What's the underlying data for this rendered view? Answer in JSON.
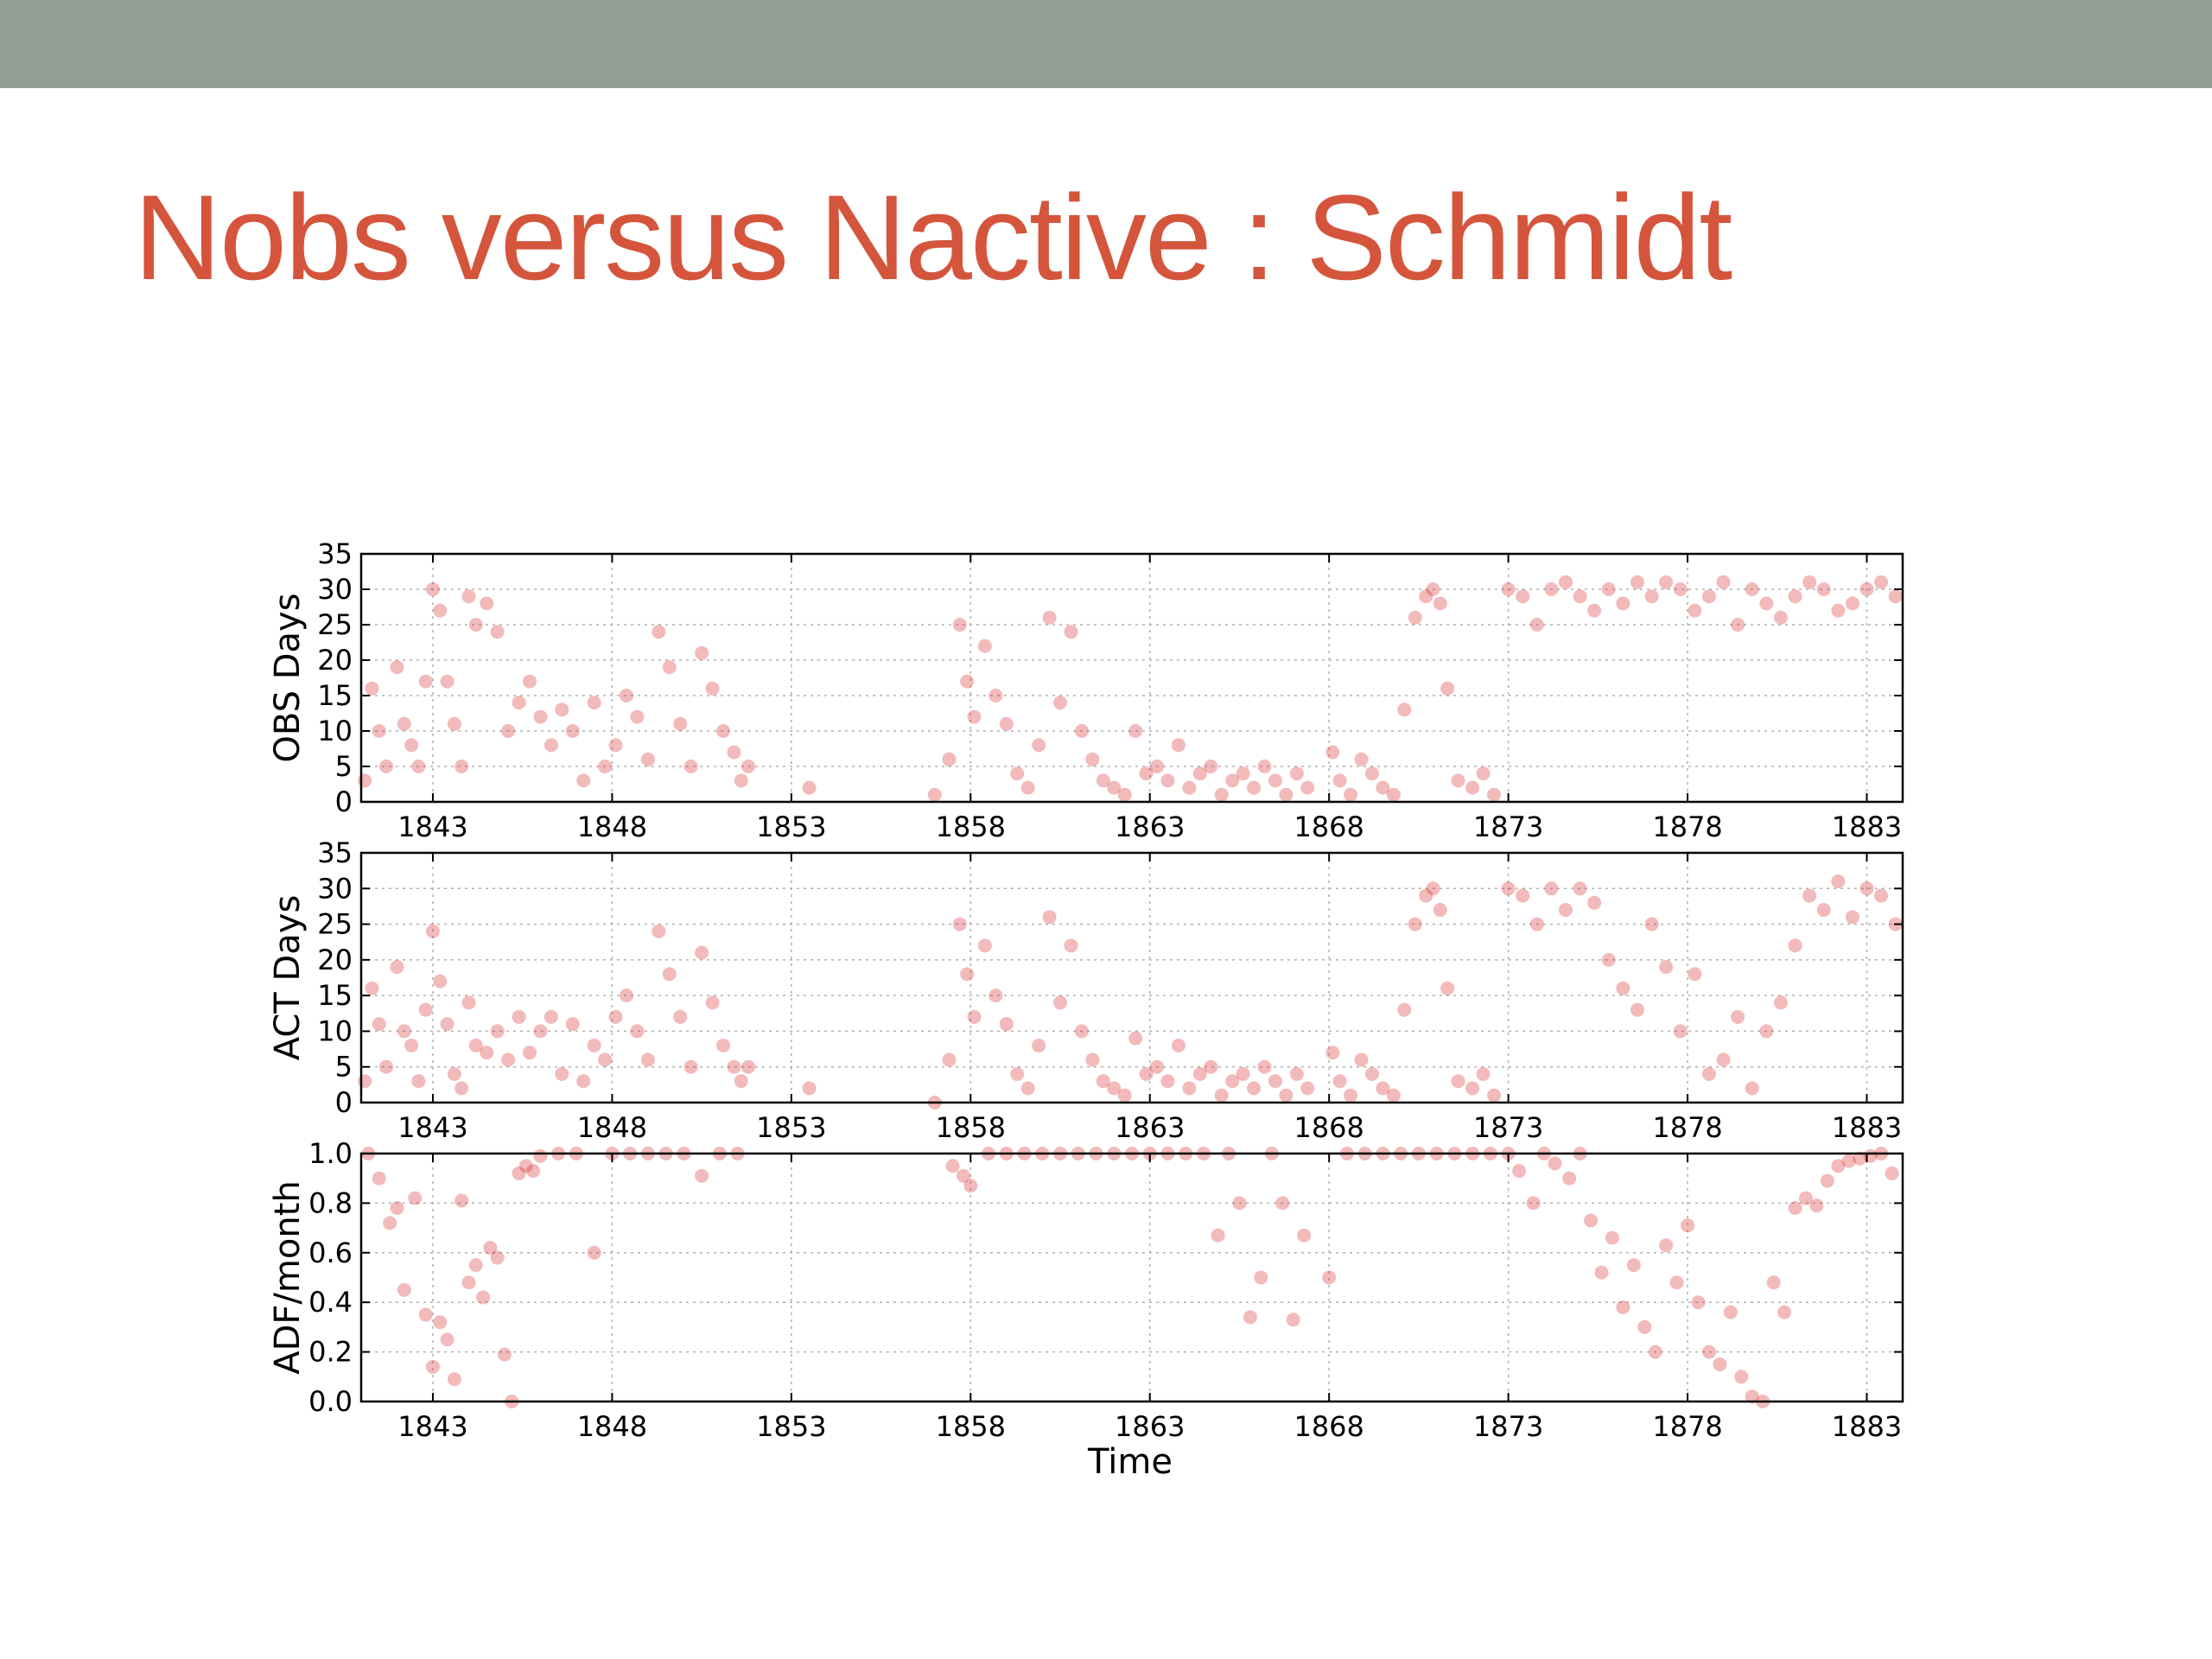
{
  "slide": {
    "title": "Nobs versus Nactive : Schmidt",
    "title_color": "#d4553c",
    "header_bar_color": "#919e96"
  },
  "chart_data": [
    {
      "type": "scatter",
      "name": "obs",
      "ylabel": "OBS Days",
      "xlabel": "",
      "xlim": [
        1841,
        1884
      ],
      "ylim": [
        0,
        35
      ],
      "xticks": [
        1843,
        1848,
        1853,
        1858,
        1863,
        1868,
        1873,
        1878,
        1883
      ],
      "xtick_labels": [
        "1843",
        "1848",
        "1853",
        "1858",
        "1863",
        "1868",
        "1873",
        "1878",
        "1883"
      ],
      "yticks": [
        0,
        5,
        10,
        15,
        20,
        25,
        30,
        35
      ],
      "ytick_labels": [
        "0",
        "5",
        "10",
        "15",
        "20",
        "25",
        "30",
        "35"
      ],
      "grid": true,
      "marker_color": "#d62728",
      "x": [
        1841.1,
        1841.3,
        1841.5,
        1841.7,
        1842.0,
        1842.2,
        1842.4,
        1842.6,
        1842.8,
        1843.0,
        1843.2,
        1843.4,
        1843.6,
        1843.8,
        1844.0,
        1844.2,
        1844.5,
        1844.8,
        1845.1,
        1845.4,
        1845.7,
        1846.0,
        1846.3,
        1846.6,
        1846.9,
        1847.2,
        1847.5,
        1847.8,
        1848.1,
        1848.4,
        1848.7,
        1849.0,
        1849.3,
        1849.6,
        1849.9,
        1850.2,
        1850.5,
        1850.8,
        1851.1,
        1851.4,
        1851.6,
        1851.8,
        1853.5,
        1857.0,
        1857.4,
        1857.7,
        1857.9,
        1858.1,
        1858.4,
        1858.7,
        1859.0,
        1859.3,
        1859.6,
        1859.9,
        1860.2,
        1860.5,
        1860.8,
        1861.1,
        1861.4,
        1861.7,
        1862.0,
        1862.3,
        1862.6,
        1862.9,
        1863.2,
        1863.5,
        1863.8,
        1864.1,
        1864.4,
        1864.7,
        1865.0,
        1865.3,
        1865.6,
        1865.9,
        1866.2,
        1866.5,
        1866.8,
        1867.1,
        1867.4,
        1868.1,
        1868.3,
        1868.6,
        1868.9,
        1869.2,
        1869.5,
        1869.8,
        1870.1,
        1870.4,
        1870.7,
        1870.9,
        1871.1,
        1871.3,
        1871.6,
        1872.0,
        1872.3,
        1872.6,
        1873.0,
        1873.4,
        1873.8,
        1874.2,
        1874.6,
        1875.0,
        1875.4,
        1875.8,
        1876.2,
        1876.6,
        1877.0,
        1877.4,
        1877.8,
        1878.2,
        1878.6,
        1879.0,
        1879.4,
        1879.8,
        1880.2,
        1880.6,
        1881.0,
        1881.4,
        1881.8,
        1882.2,
        1882.6,
        1883.0,
        1883.4,
        1883.8
      ],
      "y": [
        3,
        16,
        10,
        5,
        19,
        11,
        8,
        5,
        17,
        30,
        27,
        17,
        11,
        5,
        29,
        25,
        28,
        24,
        10,
        14,
        17,
        12,
        8,
        13,
        10,
        3,
        14,
        5,
        8,
        15,
        12,
        6,
        24,
        19,
        11,
        5,
        21,
        16,
        10,
        7,
        3,
        5,
        2,
        1,
        6,
        25,
        17,
        12,
        22,
        15,
        11,
        4,
        2,
        8,
        26,
        14,
        24,
        10,
        6,
        3,
        2,
        1,
        10,
        4,
        5,
        3,
        8,
        2,
        4,
        5,
        1,
        3,
        4,
        2,
        5,
        3,
        1,
        4,
        2,
        7,
        3,
        1,
        6,
        4,
        2,
        1,
        13,
        26,
        29,
        30,
        28,
        16,
        3,
        2,
        4,
        1,
        30,
        29,
        25,
        30,
        31,
        29,
        27,
        30,
        28,
        31,
        29,
        31,
        30,
        27,
        29,
        31,
        25,
        30,
        28,
        26,
        29,
        31,
        30,
        27,
        28,
        30,
        31,
        29
      ]
    },
    {
      "type": "scatter",
      "name": "act",
      "ylabel": "ACT Days",
      "xlabel": "",
      "xlim": [
        1841,
        1884
      ],
      "ylim": [
        0,
        35
      ],
      "xticks": [
        1843,
        1848,
        1853,
        1858,
        1863,
        1868,
        1873,
        1878,
        1883
      ],
      "xtick_labels": [
        "1843",
        "1848",
        "1853",
        "1858",
        "1863",
        "1868",
        "1873",
        "1878",
        "1883"
      ],
      "yticks": [
        0,
        5,
        10,
        15,
        20,
        25,
        30,
        35
      ],
      "ytick_labels": [
        "0",
        "5",
        "10",
        "15",
        "20",
        "25",
        "30",
        "35"
      ],
      "grid": true,
      "marker_color": "#d62728",
      "x": [
        1841.1,
        1841.3,
        1841.5,
        1841.7,
        1842.0,
        1842.2,
        1842.4,
        1842.6,
        1842.8,
        1843.0,
        1843.2,
        1843.4,
        1843.6,
        1843.8,
        1844.0,
        1844.2,
        1844.5,
        1844.8,
        1845.1,
        1845.4,
        1845.7,
        1846.0,
        1846.3,
        1846.6,
        1846.9,
        1847.2,
        1847.5,
        1847.8,
        1848.1,
        1848.4,
        1848.7,
        1849.0,
        1849.3,
        1849.6,
        1849.9,
        1850.2,
        1850.5,
        1850.8,
        1851.1,
        1851.4,
        1851.6,
        1851.8,
        1853.5,
        1857.0,
        1857.4,
        1857.7,
        1857.9,
        1858.1,
        1858.4,
        1858.7,
        1859.0,
        1859.3,
        1859.6,
        1859.9,
        1860.2,
        1860.5,
        1860.8,
        1861.1,
        1861.4,
        1861.7,
        1862.0,
        1862.3,
        1862.6,
        1862.9,
        1863.2,
        1863.5,
        1863.8,
        1864.1,
        1864.4,
        1864.7,
        1865.0,
        1865.3,
        1865.6,
        1865.9,
        1866.2,
        1866.5,
        1866.8,
        1867.1,
        1867.4,
        1868.1,
        1868.3,
        1868.6,
        1868.9,
        1869.2,
        1869.5,
        1869.8,
        1870.1,
        1870.4,
        1870.7,
        1870.9,
        1871.1,
        1871.3,
        1871.6,
        1872.0,
        1872.3,
        1872.6,
        1873.0,
        1873.4,
        1873.8,
        1874.2,
        1874.6,
        1875.0,
        1875.4,
        1875.8,
        1876.2,
        1876.6,
        1877.0,
        1877.4,
        1877.8,
        1878.2,
        1878.6,
        1879.0,
        1879.4,
        1879.8,
        1880.2,
        1880.6,
        1881.0,
        1881.4,
        1881.8,
        1882.2,
        1882.6,
        1883.0,
        1883.4,
        1883.8
      ],
      "y": [
        3,
        16,
        11,
        5,
        19,
        10,
        8,
        3,
        13,
        24,
        17,
        11,
        4,
        2,
        14,
        8,
        7,
        10,
        6,
        12,
        7,
        10,
        12,
        4,
        11,
        3,
        8,
        6,
        12,
        15,
        10,
        6,
        24,
        18,
        12,
        5,
        21,
        14,
        8,
        5,
        3,
        5,
        2,
        0,
        6,
        25,
        18,
        12,
        22,
        15,
        11,
        4,
        2,
        8,
        26,
        14,
        22,
        10,
        6,
        3,
        2,
        1,
        9,
        4,
        5,
        3,
        8,
        2,
        4,
        5,
        1,
        3,
        4,
        2,
        5,
        3,
        1,
        4,
        2,
        7,
        3,
        1,
        6,
        4,
        2,
        1,
        13,
        25,
        29,
        30,
        27,
        16,
        3,
        2,
        4,
        1,
        30,
        29,
        25,
        30,
        27,
        30,
        28,
        20,
        16,
        13,
        25,
        19,
        10,
        18,
        4,
        6,
        12,
        2,
        10,
        14,
        22,
        29,
        27,
        31,
        26,
        30,
        29,
        25
      ]
    },
    {
      "type": "scatter",
      "name": "adf",
      "ylabel": "ADF/month",
      "xlabel": "Time",
      "xlim": [
        1841,
        1884
      ],
      "ylim": [
        0.0,
        1.0
      ],
      "xticks": [
        1843,
        1848,
        1853,
        1858,
        1863,
        1868,
        1873,
        1878,
        1883
      ],
      "xtick_labels": [
        "1843",
        "1848",
        "1853",
        "1858",
        "1863",
        "1868",
        "1873",
        "1878",
        "1883"
      ],
      "yticks": [
        0.0,
        0.2,
        0.4,
        0.6,
        0.8,
        1.0
      ],
      "ytick_labels": [
        "0.0",
        "0.2",
        "0.4",
        "0.6",
        "0.8",
        "1.0"
      ],
      "grid": true,
      "marker_color": "#d62728",
      "x": [
        1841.2,
        1841.5,
        1841.8,
        1842.0,
        1842.2,
        1842.5,
        1842.8,
        1843.0,
        1843.2,
        1843.4,
        1843.6,
        1843.8,
        1844.0,
        1844.2,
        1844.4,
        1844.6,
        1844.8,
        1845.0,
        1845.2,
        1845.4,
        1845.6,
        1845.8,
        1846.0,
        1846.5,
        1847.0,
        1847.5,
        1848.0,
        1848.5,
        1849.0,
        1849.5,
        1850.0,
        1850.5,
        1851.0,
        1851.5,
        1857.5,
        1857.8,
        1858.0,
        1858.5,
        1859.0,
        1859.5,
        1860.0,
        1860.5,
        1861.0,
        1861.5,
        1862.0,
        1862.5,
        1863.0,
        1863.5,
        1864.0,
        1864.5,
        1864.9,
        1865.2,
        1865.5,
        1865.8,
        1866.1,
        1866.4,
        1866.7,
        1867.0,
        1867.3,
        1868.0,
        1868.5,
        1869.0,
        1869.5,
        1870.0,
        1870.5,
        1871.0,
        1871.5,
        1872.0,
        1872.5,
        1873.0,
        1873.3,
        1873.7,
        1874.0,
        1874.3,
        1874.7,
        1875.0,
        1875.3,
        1875.6,
        1875.9,
        1876.2,
        1876.5,
        1876.8,
        1877.1,
        1877.4,
        1877.7,
        1878.0,
        1878.3,
        1878.6,
        1878.9,
        1879.2,
        1879.5,
        1879.8,
        1880.1,
        1880.4,
        1880.7,
        1881.0,
        1881.3,
        1881.6,
        1881.9,
        1882.2,
        1882.5,
        1882.8,
        1883.1,
        1883.4,
        1883.7
      ],
      "y": [
        1.0,
        0.9,
        0.72,
        0.78,
        0.45,
        0.82,
        0.35,
        0.14,
        0.32,
        0.25,
        0.09,
        0.81,
        0.48,
        0.55,
        0.42,
        0.62,
        0.58,
        0.19,
        0.0,
        0.92,
        0.95,
        0.93,
        0.99,
        1.0,
        1.0,
        0.6,
        1.0,
        1.0,
        1.0,
        1.0,
        1.0,
        0.91,
        1.0,
        1.0,
        0.95,
        0.91,
        0.87,
        1.0,
        1.0,
        1.0,
        1.0,
        1.0,
        1.0,
        1.0,
        1.0,
        1.0,
        1.0,
        1.0,
        1.0,
        1.0,
        0.67,
        1.0,
        0.8,
        0.34,
        0.5,
        1.0,
        0.8,
        0.33,
        0.67,
        0.5,
        1.0,
        1.0,
        1.0,
        1.0,
        1.0,
        1.0,
        1.0,
        1.0,
        1.0,
        1.0,
        0.93,
        0.8,
        1.0,
        0.96,
        0.9,
        1.0,
        0.73,
        0.52,
        0.66,
        0.38,
        0.55,
        0.3,
        0.2,
        0.63,
        0.48,
        0.71,
        0.4,
        0.2,
        0.15,
        0.36,
        0.1,
        0.02,
        0.0,
        0.48,
        0.36,
        0.78,
        0.82,
        0.79,
        0.89,
        0.95,
        0.97,
        0.98,
        0.99,
        1.0,
        0.92
      ]
    }
  ]
}
